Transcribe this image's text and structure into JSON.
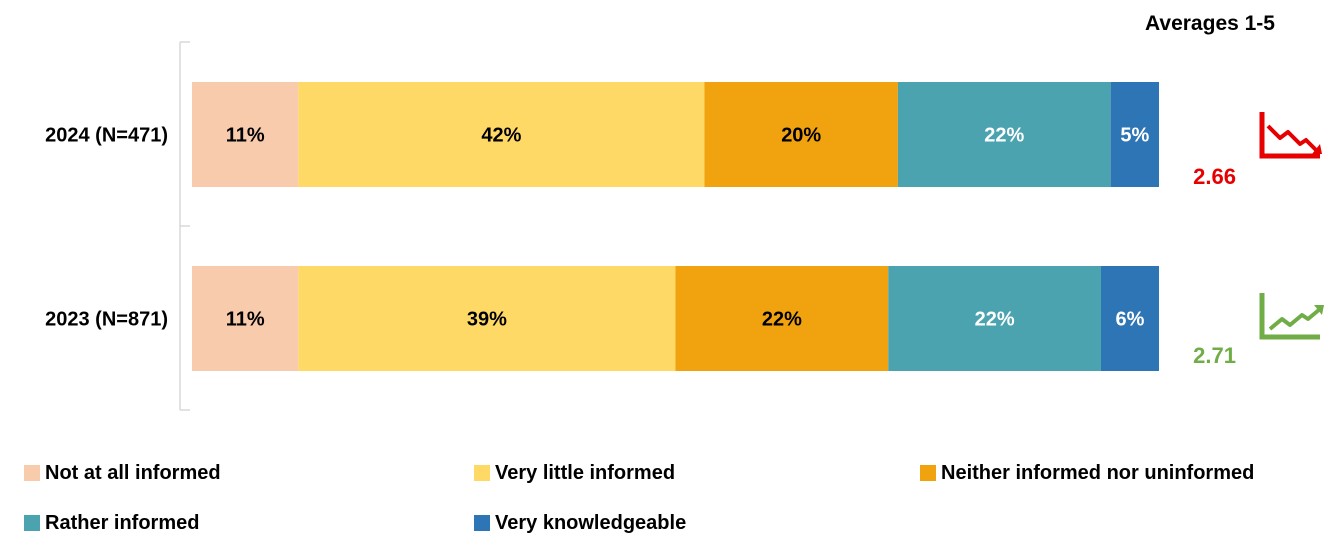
{
  "averages_header": "Averages 1-5",
  "colors": {
    "axis": "#d9d9d9",
    "label_dark": "#000000",
    "label_light": "#ffffff",
    "trend_down": "#e60000",
    "trend_up": "#70ad47"
  },
  "chart_data": {
    "type": "bar",
    "orientation": "horizontal",
    "stacked": true,
    "categories": [
      "2024 (N=471)",
      "2023 (N=871)"
    ],
    "series": [
      {
        "name": "Not at all informed",
        "color": "#f8cbad",
        "values": [
          11,
          11
        ],
        "labels": [
          "11%",
          "11%"
        ]
      },
      {
        "name": "Very little informed",
        "color": "#fed966",
        "values": [
          42,
          39
        ],
        "labels": [
          "42%",
          "39%"
        ]
      },
      {
        "name": "Neither informed nor uninformed",
        "color": "#f0a30f",
        "values": [
          20,
          22
        ],
        "labels": [
          "20%",
          "22%"
        ]
      },
      {
        "name": "Rather informed",
        "color": "#4ba3b0",
        "values": [
          22,
          22
        ],
        "labels": [
          "22%",
          "22%"
        ]
      },
      {
        "name": "Very knowledgeable",
        "color": "#2e75b6",
        "values": [
          5,
          6
        ],
        "labels": [
          "5%",
          "6%"
        ]
      }
    ],
    "averages": [
      {
        "value": "2.66",
        "trend": "down",
        "icon": "trend-down-icon",
        "color": "#e60000"
      },
      {
        "value": "2.71",
        "trend": "up",
        "icon": "trend-up-icon",
        "color": "#70ad47"
      }
    ],
    "legend_position": "bottom",
    "grid": false
  }
}
